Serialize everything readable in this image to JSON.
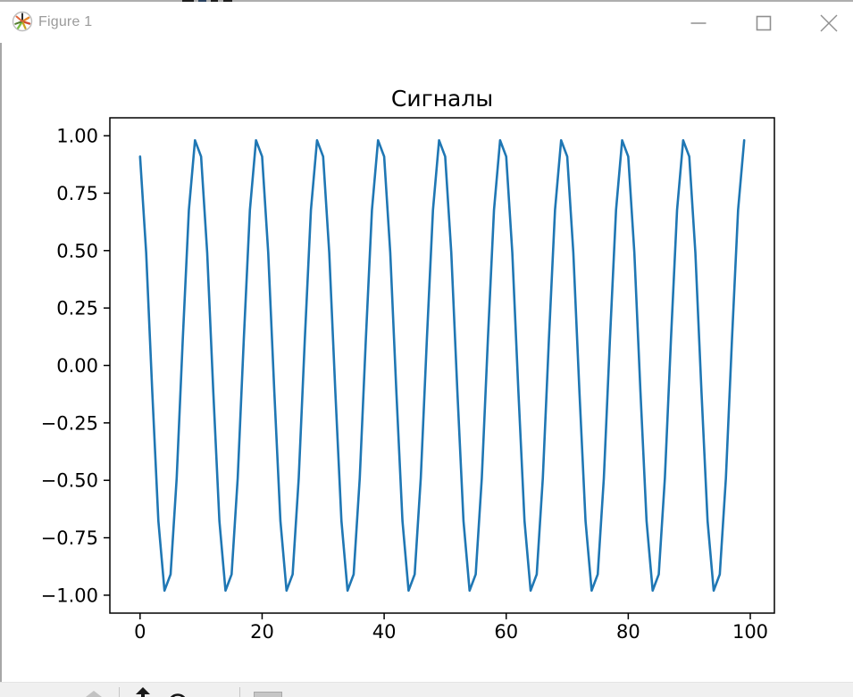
{
  "window": {
    "title": "Figure 1",
    "caption_buttons": {
      "minimize": "minimize-icon",
      "maximize": "maximize-icon",
      "close": "close-icon"
    },
    "accent_colors": {
      "titlebar_bg": "#ffffff",
      "title_text": "#9b9b9b",
      "caption_glyph": "#8f8f8f",
      "toolbar_bg": "#f0f0f0"
    }
  },
  "chart_data": {
    "type": "line",
    "title": "Сигналы",
    "xlabel": "",
    "ylabel": "",
    "grid": false,
    "legend": null,
    "series_color": "#1f77b4",
    "xlim": [
      -4.95,
      103.95
    ],
    "ylim": [
      -1.078,
      1.078
    ],
    "xticks": [
      0,
      20,
      40,
      60,
      80,
      100
    ],
    "xtick_labels": [
      "0",
      "20",
      "40",
      "60",
      "80",
      "100"
    ],
    "yticks": [
      1.0,
      0.75,
      0.5,
      0.25,
      0.0,
      -0.25,
      -0.5,
      -0.75,
      -1.0
    ],
    "ytick_labels": [
      "1.00",
      "0.75",
      "0.50",
      "0.25",
      "0.00",
      "−0.25",
      "−0.50",
      "−0.75",
      "−1.00"
    ],
    "x": [
      0,
      1,
      2,
      3,
      4,
      5,
      6,
      7,
      8,
      9,
      10,
      11,
      12,
      13,
      14,
      15,
      16,
      17,
      18,
      19,
      20,
      21,
      22,
      23,
      24,
      25,
      26,
      27,
      28,
      29,
      30,
      31,
      32,
      33,
      34,
      35,
      36,
      37,
      38,
      39,
      40,
      41,
      42,
      43,
      44,
      45,
      46,
      47,
      48,
      49,
      50,
      51,
      52,
      53,
      54,
      55,
      56,
      57,
      58,
      59,
      60,
      61,
      62,
      63,
      64,
      65,
      66,
      67,
      68,
      69,
      70,
      71,
      72,
      73,
      74,
      75,
      76,
      77,
      78,
      79,
      80,
      81,
      82,
      83,
      84,
      85,
      86,
      87,
      88,
      89,
      90,
      91,
      92,
      93,
      94,
      95,
      96,
      97,
      98,
      99
    ],
    "values": [
      0.9093,
      0.4908,
      -0.1148,
      -0.6771,
      -0.9802,
      -0.9093,
      -0.4908,
      0.1148,
      0.6771,
      0.9802,
      0.9093,
      0.4908,
      -0.1148,
      -0.6771,
      -0.9802,
      -0.9093,
      -0.4908,
      0.1148,
      0.6771,
      0.9802,
      0.9093,
      0.4908,
      -0.1148,
      -0.6771,
      -0.9802,
      -0.9093,
      -0.4908,
      0.1148,
      0.6771,
      0.9802,
      0.9093,
      0.4908,
      -0.1148,
      -0.6771,
      -0.9802,
      -0.9093,
      -0.4908,
      0.1148,
      0.6771,
      0.9802,
      0.9093,
      0.4908,
      -0.1148,
      -0.6771,
      -0.9802,
      -0.9093,
      -0.4908,
      0.1148,
      0.6771,
      0.9802,
      0.9093,
      0.4908,
      -0.1148,
      -0.6771,
      -0.9802,
      -0.9093,
      -0.4908,
      0.1148,
      0.6771,
      0.9802,
      0.9093,
      0.4908,
      -0.1148,
      -0.6771,
      -0.9802,
      -0.9093,
      -0.4908,
      0.1148,
      0.6771,
      0.9802,
      0.9093,
      0.4908,
      -0.1148,
      -0.6771,
      -0.9802,
      -0.9093,
      -0.4908,
      0.1148,
      0.6771,
      0.9802,
      0.9093,
      0.4908,
      -0.1148,
      -0.6771,
      -0.9802,
      -0.9093,
      -0.4908,
      0.1148,
      0.6771,
      0.9802,
      0.9093,
      0.4908,
      -0.1148,
      -0.6771,
      -0.9802,
      -0.9093,
      -0.4908,
      0.1148,
      0.6771,
      0.9802
    ]
  },
  "toolbar": {
    "icons": [
      "home-icon",
      "pan-icon",
      "zoom-icon",
      "save-icon"
    ]
  }
}
